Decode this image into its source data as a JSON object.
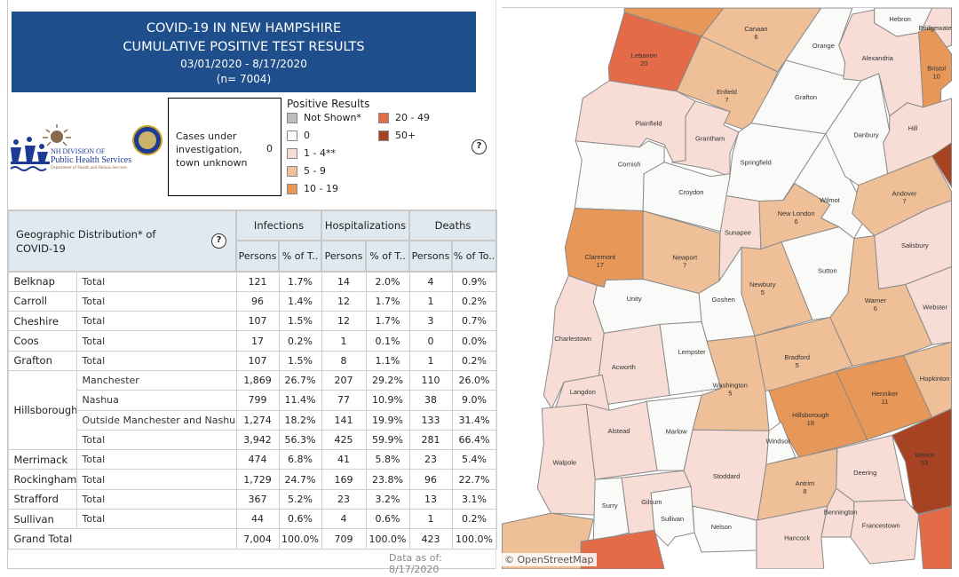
{
  "header": {
    "line1": "COVID-19 IN NEW HAMPSHIRE",
    "line2": "CUMULATIVE POSITIVE TEST RESULTS",
    "dates": "03/01/2020 - 8/17/2020",
    "n": "(n= 7004)"
  },
  "logo": {
    "line1": "NH DIVISION OF",
    "line2": "Public Health Services",
    "line3": "Department of Health and Human Services"
  },
  "cases_unknown": {
    "label": "Cases under investigation, town unknown",
    "value": "0"
  },
  "legend": {
    "title": "Positive Results",
    "items": [
      {
        "label": "Not Shown*",
        "color": "#bdbdbd"
      },
      {
        "label": "0",
        "color": "#fafaf8"
      },
      {
        "label": "1 - 4**",
        "color": "#f7ddd6"
      },
      {
        "label": "5 - 9",
        "color": "#efbf97"
      },
      {
        "label": "10 - 19",
        "color": "#e79758"
      },
      {
        "label": "20 - 49",
        "color": "#e46b47"
      },
      {
        "label": "50+",
        "color": "#a74323"
      }
    ]
  },
  "help_icon": "?",
  "table": {
    "title": "Geographic Distribution* of COVID-19",
    "groups": [
      "Infections",
      "Hospitalizations",
      "Deaths"
    ],
    "subheaders": [
      "Persons",
      "% of T..",
      "Persons",
      "% of T..",
      "Persons",
      "% of To.."
    ],
    "rows": [
      {
        "county": "Belknap",
        "sub": "Total",
        "v": [
          "121",
          "1.7%",
          "14",
          "2.0%",
          "4",
          "0.9%"
        ]
      },
      {
        "county": "Carroll",
        "sub": "Total",
        "v": [
          "96",
          "1.4%",
          "12",
          "1.7%",
          "1",
          "0.2%"
        ]
      },
      {
        "county": "Cheshire",
        "sub": "Total",
        "v": [
          "107",
          "1.5%",
          "12",
          "1.7%",
          "3",
          "0.7%"
        ]
      },
      {
        "county": "Coos",
        "sub": "Total",
        "v": [
          "17",
          "0.2%",
          "1",
          "0.1%",
          "0",
          "0.0%"
        ]
      },
      {
        "county": "Grafton",
        "sub": "Total",
        "v": [
          "107",
          "1.5%",
          "8",
          "1.1%",
          "1",
          "0.2%"
        ]
      },
      {
        "county": "Hillsborough",
        "sub": "Manchester",
        "v": [
          "1,869",
          "26.7%",
          "207",
          "29.2%",
          "110",
          "26.0%"
        ]
      },
      {
        "county": "",
        "sub": "Nashua",
        "v": [
          "799",
          "11.4%",
          "77",
          "10.9%",
          "38",
          "9.0%"
        ]
      },
      {
        "county": "",
        "sub": "Outside Manchester and Nashua",
        "v": [
          "1,274",
          "18.2%",
          "141",
          "19.9%",
          "133",
          "31.4%"
        ]
      },
      {
        "county": "",
        "sub": "Total",
        "v": [
          "3,942",
          "56.3%",
          "425",
          "59.9%",
          "281",
          "66.4%"
        ]
      },
      {
        "county": "Merrimack",
        "sub": "Total",
        "v": [
          "474",
          "6.8%",
          "41",
          "5.8%",
          "23",
          "5.4%"
        ]
      },
      {
        "county": "Rockingham",
        "sub": "Total",
        "v": [
          "1,729",
          "24.7%",
          "169",
          "23.8%",
          "96",
          "22.7%"
        ]
      },
      {
        "county": "Strafford",
        "sub": "Total",
        "v": [
          "367",
          "5.2%",
          "23",
          "3.2%",
          "13",
          "3.1%"
        ]
      },
      {
        "county": "Sullivan",
        "sub": "Total",
        "v": [
          "44",
          "0.6%",
          "4",
          "0.6%",
          "1",
          "0.2%"
        ]
      }
    ],
    "grand_total": {
      "label": "Grand Total",
      "v": [
        "7,004",
        "100.0%",
        "709",
        "100.0%",
        "423",
        "100.0%"
      ]
    }
  },
  "data_as_of": "Data as of:  8/17/2020",
  "map": {
    "attribution": "© OpenStreetMap",
    "towns": [
      {
        "name": "",
        "count": "",
        "cat": 4
      },
      {
        "name": "Lebanon",
        "count": "20",
        "cat": 5
      },
      {
        "name": "Canaan",
        "count": "6",
        "cat": 3
      },
      {
        "name": "Enfield",
        "count": "7",
        "cat": 3
      },
      {
        "name": "Orange",
        "count": "",
        "cat": 1
      },
      {
        "name": "Grafton",
        "count": "",
        "cat": 1
      },
      {
        "name": "Plainfield",
        "count": "",
        "cat": 2
      },
      {
        "name": "Grantham",
        "count": "",
        "cat": 2
      },
      {
        "name": "Cornish",
        "count": "",
        "cat": 1
      },
      {
        "name": "Croydon",
        "count": "",
        "cat": 1
      },
      {
        "name": "Springfield",
        "count": "",
        "cat": 1
      },
      {
        "name": "Claremont",
        "count": "17",
        "cat": 4
      },
      {
        "name": "Newport",
        "count": "7",
        "cat": 3
      },
      {
        "name": "Sunapee",
        "count": "",
        "cat": 2
      },
      {
        "name": "New London",
        "count": "6",
        "cat": 3
      },
      {
        "name": "Wilmot",
        "count": "",
        "cat": 1
      },
      {
        "name": "Danbury",
        "count": "",
        "cat": 1
      },
      {
        "name": "Alexandria",
        "count": "",
        "cat": 2
      },
      {
        "name": "Hebron",
        "count": "",
        "cat": 1
      },
      {
        "name": "Bridgewater",
        "count": "",
        "cat": 2
      },
      {
        "name": "Bristol",
        "count": "10",
        "cat": 4
      },
      {
        "name": "Hill",
        "count": "",
        "cat": 2
      },
      {
        "name": "",
        "count": "",
        "cat": 6
      },
      {
        "name": "Andover",
        "count": "7",
        "cat": 3
      },
      {
        "name": "Salisbury",
        "count": "",
        "cat": 2
      },
      {
        "name": "Warner",
        "count": "6",
        "cat": 3
      },
      {
        "name": "Webster",
        "count": "",
        "cat": 2
      },
      {
        "name": "Sutton",
        "count": "",
        "cat": 1
      },
      {
        "name": "Newbury",
        "count": "5",
        "cat": 3
      },
      {
        "name": "Goshen",
        "count": "",
        "cat": 1
      },
      {
        "name": "Unity",
        "count": "",
        "cat": 1
      },
      {
        "name": "Charlestown",
        "count": "",
        "cat": 2
      },
      {
        "name": "Acworth",
        "count": "",
        "cat": 2
      },
      {
        "name": "Lempster",
        "count": "",
        "cat": 1
      },
      {
        "name": "Washington",
        "count": "5",
        "cat": 3
      },
      {
        "name": "Bradford",
        "count": "5",
        "cat": 3
      },
      {
        "name": "Hillsborough",
        "count": "18",
        "cat": 4
      },
      {
        "name": "Henniker",
        "count": "11",
        "cat": 4
      },
      {
        "name": "Hopkinton",
        "count": "",
        "cat": 3
      },
      {
        "name": "Weare",
        "count": "53",
        "cat": 6
      },
      {
        "name": "Langdon",
        "count": "",
        "cat": 2
      },
      {
        "name": "Alstead",
        "count": "",
        "cat": 2
      },
      {
        "name": "Marlow",
        "count": "",
        "cat": 1
      },
      {
        "name": "Windsor",
        "count": "",
        "cat": 1
      },
      {
        "name": "Stoddard",
        "count": "",
        "cat": 2
      },
      {
        "name": "Walpole",
        "count": "",
        "cat": 2
      },
      {
        "name": "Surry",
        "count": "",
        "cat": 1
      },
      {
        "name": "Gilsum",
        "count": "",
        "cat": 2
      },
      {
        "name": "Sullivan",
        "count": "",
        "cat": 1
      },
      {
        "name": "Nelson",
        "count": "",
        "cat": 1
      },
      {
        "name": "Antrim",
        "count": "8",
        "cat": 3
      },
      {
        "name": "Deering",
        "count": "",
        "cat": 2
      },
      {
        "name": "Bennington",
        "count": "",
        "cat": 2
      },
      {
        "name": "Francestown",
        "count": "",
        "cat": 2
      },
      {
        "name": "Hancock",
        "count": "",
        "cat": 2
      },
      {
        "name": "",
        "count": "",
        "cat": 3
      },
      {
        "name": "",
        "count": "",
        "cat": 5
      },
      {
        "name": "",
        "count": "",
        "cat": 5
      }
    ]
  }
}
